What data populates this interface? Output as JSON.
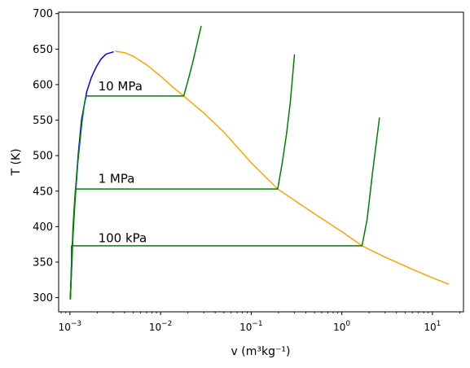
{
  "chart_data": {
    "type": "line",
    "title": "",
    "xlabel": "v (m³kg⁻¹)",
    "ylabel": "T (K)",
    "xscale": "log",
    "xlim": [
      0.00075,
      22
    ],
    "ylim": [
      280,
      702
    ],
    "grid": false,
    "yticks": [
      300,
      350,
      400,
      450,
      500,
      550,
      600,
      650,
      700
    ],
    "xticks": [
      {
        "value": 0.001,
        "base": "10",
        "exp": "−3"
      },
      {
        "value": 0.01,
        "base": "10",
        "exp": "−2"
      },
      {
        "value": 0.1,
        "base": "10",
        "exp": "−1"
      },
      {
        "value": 1,
        "base": "10",
        "exp": "0"
      },
      {
        "value": 10,
        "base": "10",
        "exp": "1"
      }
    ],
    "colors": {
      "saturated_liquid": "#0000ff",
      "saturated_vapor": "#ffa500",
      "isobar": "#008000"
    },
    "series": [
      {
        "key": "saturated_liquid",
        "color": "#0000ff",
        "points": [
          [
            0.00101,
            300
          ],
          [
            0.00105,
            350
          ],
          [
            0.00109,
            400
          ],
          [
            0.00115,
            450
          ],
          [
            0.00123,
            500
          ],
          [
            0.00134,
            550
          ],
          [
            0.00153,
            590
          ],
          [
            0.00172,
            610
          ],
          [
            0.00195,
            625
          ],
          [
            0.0022,
            636
          ],
          [
            0.0025,
            643
          ],
          [
            0.003,
            646
          ]
        ]
      },
      {
        "key": "saturated_vapor",
        "color": "#ffa500",
        "points": [
          [
            0.0032,
            647
          ],
          [
            0.004,
            645
          ],
          [
            0.005,
            640
          ],
          [
            0.007,
            628
          ],
          [
            0.01,
            612
          ],
          [
            0.0135,
            597
          ],
          [
            0.018,
            584
          ],
          [
            0.03,
            560
          ],
          [
            0.05,
            533
          ],
          [
            0.1,
            490
          ],
          [
            0.196,
            453
          ],
          [
            0.5,
            418
          ],
          [
            1.0,
            393
          ],
          [
            1.67,
            373
          ],
          [
            3.0,
            357
          ],
          [
            6.0,
            340
          ],
          [
            10.0,
            328
          ],
          [
            15.0,
            319
          ]
        ]
      },
      {
        "key": "isobar_10MPa",
        "color": "#008000",
        "points": [
          [
            0.00101,
            300
          ],
          [
            0.00103,
            330
          ],
          [
            0.00106,
            370
          ],
          [
            0.00113,
            430
          ],
          [
            0.00122,
            490
          ],
          [
            0.00135,
            545
          ],
          [
            0.00145,
            575
          ],
          [
            0.00152,
            584
          ],
          [
            0.018,
            584
          ],
          [
            0.0205,
            610
          ],
          [
            0.023,
            635
          ],
          [
            0.0255,
            660
          ],
          [
            0.028,
            682
          ]
        ]
      },
      {
        "key": "isobar_1MPa",
        "color": "#008000",
        "points": [
          [
            0.00101,
            298
          ],
          [
            0.00108,
            400
          ],
          [
            0.00113,
            440
          ],
          [
            0.00115,
            453
          ],
          [
            0.196,
            453
          ],
          [
            0.22,
            490
          ],
          [
            0.245,
            530
          ],
          [
            0.27,
            575
          ],
          [
            0.3,
            642
          ]
        ]
      },
      {
        "key": "isobar_100kPa",
        "color": "#008000",
        "points": [
          [
            0.00101,
            298
          ],
          [
            0.00104,
            350
          ],
          [
            0.00104,
            373
          ],
          [
            1.67,
            373
          ],
          [
            1.9,
            410
          ],
          [
            2.2,
            480
          ],
          [
            2.6,
            553
          ]
        ]
      }
    ],
    "annotations": [
      {
        "text": "10 MPa",
        "x": 0.00205,
        "y": 592,
        "color": "#008000"
      },
      {
        "text": "1 MPa",
        "x": 0.00205,
        "y": 462,
        "color": "#008000"
      },
      {
        "text": "100 kPa",
        "x": 0.00205,
        "y": 378,
        "color": "#008000"
      }
    ]
  }
}
